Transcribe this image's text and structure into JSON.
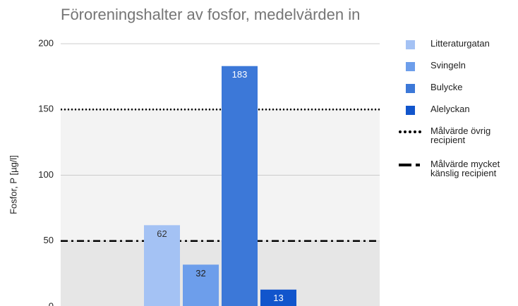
{
  "chart_data": {
    "type": "bar",
    "title": "Föroreningshalter av fosfor, medelvärden in",
    "y_label": "Fosfor, P [µg/l]",
    "categories": [
      null
    ],
    "series": [
      {
        "name": "Litteraturgatan",
        "color": "#a4c2f4",
        "label_color": "#333333",
        "values": [
          62
        ]
      },
      {
        "name": "Svingeln",
        "color": "#6d9eeb",
        "label_color": "#222222",
        "values": [
          32
        ]
      },
      {
        "name": "Bulycke",
        "color": "#3c78d8",
        "label_color": "#ffffff",
        "values": [
          183
        ]
      },
      {
        "name": "Alelyckan",
        "color": "#1155cc",
        "label_color": "#ffffff",
        "values": [
          13
        ]
      }
    ],
    "reference_lines": [
      {
        "name": "Målvärde övrig recipient",
        "value": 150,
        "style": "dotted",
        "band_fill": "#f3f3f3"
      },
      {
        "name": "Målvärde mycket känslig recipient",
        "value": 50,
        "style": "dashdot",
        "band_fill": "#e6e6e6"
      }
    ],
    "ylim": [
      0,
      200
    ],
    "yticks": [
      0,
      50,
      100,
      150,
      200
    ],
    "grid": true,
    "legend": "right"
  }
}
